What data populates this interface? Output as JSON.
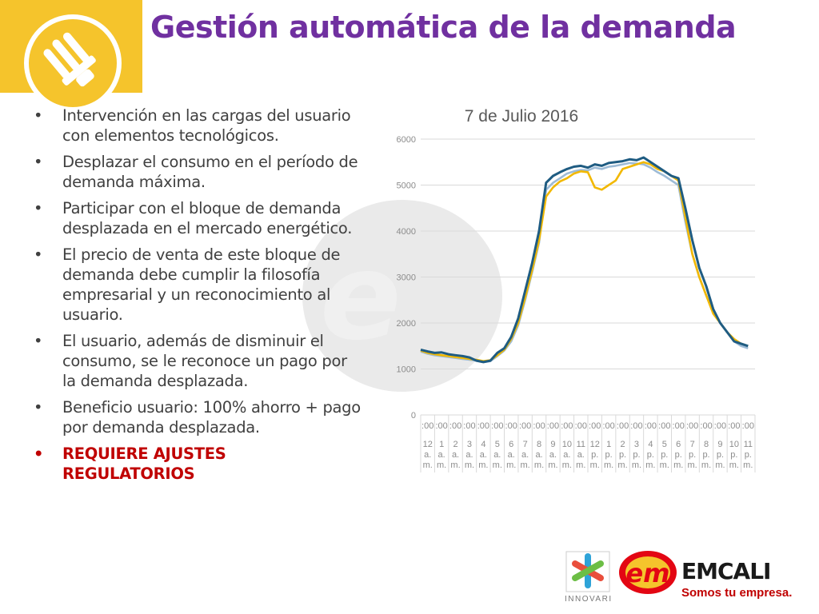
{
  "slide": {
    "title": "Gestión automática de la demanda",
    "bullets": [
      {
        "text": "Intervención en las cargas del usuario con elementos tecnológicos.",
        "alert": false
      },
      {
        "text": "Desplazar el consumo en el período de demanda máxima.",
        "alert": false
      },
      {
        "text": "Participar con el bloque de demanda desplazada en el mercado energético.",
        "alert": false
      },
      {
        "text": "El precio de venta de este bloque de demanda debe cumplir la filosofía empresarial y un reconocimiento al usuario.",
        "alert": false
      },
      {
        "text": "El usuario, además de disminuir el consumo, se le reconoce un pago por la demanda desplazada.",
        "alert": false
      },
      {
        "text": "Beneficio usuario: 100% ahorro + pago por demanda desplazada.",
        "alert": false
      },
      {
        "text": "REQUIERE AJUSTES REGULATORIOS",
        "alert": true
      }
    ],
    "bullet_char": "•",
    "logos": {
      "innovari": "INNOVARI",
      "emcali": "EMCALI",
      "emcali_tagline": "Somos tu empresa."
    },
    "colors": {
      "title": "#7030a0",
      "accent": "#f5c42c",
      "alert": "#c00000"
    }
  },
  "chart_data": {
    "type": "line",
    "title": "7 de Julio 2016",
    "ylim": [
      0,
      6000
    ],
    "yticks": [
      0,
      1000,
      2000,
      3000,
      4000,
      5000,
      6000
    ],
    "x_tick_top": ":00",
    "x_tick_labels": [
      [
        "12",
        "a.",
        "m."
      ],
      [
        "1",
        "a.",
        "m."
      ],
      [
        "2",
        "a.",
        "m."
      ],
      [
        "3",
        "a.",
        "m."
      ],
      [
        "4",
        "a.",
        "m."
      ],
      [
        "5",
        "a.",
        "m."
      ],
      [
        "6",
        "a.",
        "m."
      ],
      [
        "7",
        "a.",
        "m."
      ],
      [
        "8",
        "a.",
        "m."
      ],
      [
        "9",
        "a.",
        "m."
      ],
      [
        "10",
        "a.",
        "m."
      ],
      [
        "11",
        "a.",
        "m."
      ],
      [
        "12",
        "p.",
        "m."
      ],
      [
        "1",
        "p.",
        "m."
      ],
      [
        "2",
        "p.",
        "m."
      ],
      [
        "3",
        "p.",
        "m."
      ],
      [
        "4",
        "p.",
        "m."
      ],
      [
        "5",
        "p.",
        "m."
      ],
      [
        "6",
        "p.",
        "m."
      ],
      [
        "7",
        "p.",
        "m."
      ],
      [
        "8",
        "p.",
        "m."
      ],
      [
        "9",
        "p.",
        "m."
      ],
      [
        "10",
        "p.",
        "m."
      ],
      [
        "11",
        "p.",
        "m."
      ]
    ],
    "x": [
      0,
      0.5,
      1,
      1.5,
      2,
      2.5,
      3,
      3.5,
      4,
      4.5,
      5,
      5.5,
      6,
      6.5,
      7,
      7.5,
      8,
      8.5,
      9,
      9.5,
      10,
      10.5,
      11,
      11.5,
      12,
      12.5,
      13,
      13.5,
      14,
      14.5,
      15,
      15.5,
      16,
      16.5,
      17,
      17.5,
      18,
      18.5,
      19,
      19.5,
      20,
      20.5,
      21,
      21.5,
      22,
      22.5,
      23,
      23.5
    ],
    "series": [
      {
        "color": "#1f5c82",
        "values": [
          1420,
          1380,
          1350,
          1360,
          1320,
          1300,
          1280,
          1250,
          1180,
          1150,
          1180,
          1350,
          1450,
          1700,
          2100,
          2700,
          3300,
          4000,
          5050,
          5200,
          5280,
          5350,
          5400,
          5420,
          5380,
          5450,
          5420,
          5480,
          5500,
          5520,
          5560,
          5540,
          5600,
          5500,
          5400,
          5300,
          5200,
          5150,
          4500,
          3800,
          3200,
          2800,
          2300,
          2000,
          1800,
          1600,
          1550,
          1500
        ]
      },
      {
        "color": "#f2b800",
        "values": [
          1400,
          1350,
          1320,
          1300,
          1280,
          1260,
          1240,
          1220,
          1200,
          1170,
          1190,
          1300,
          1420,
          1650,
          2000,
          2550,
          3150,
          3800,
          4750,
          4950,
          5080,
          5150,
          5250,
          5300,
          5280,
          4950,
          4900,
          5000,
          5100,
          5350,
          5400,
          5450,
          5500,
          5450,
          5350,
          5300,
          5200,
          5100,
          4300,
          3500,
          3000,
          2600,
          2200,
          2000,
          1800,
          1650,
          1550,
          1500
        ]
      },
      {
        "color": "#9dbbd6",
        "values": [
          1380,
          1330,
          1300,
          1280,
          1260,
          1240,
          1220,
          1200,
          1180,
          1150,
          1170,
          1280,
          1400,
          1600,
          1950,
          2500,
          3100,
          3750,
          4900,
          5050,
          5150,
          5250,
          5300,
          5330,
          5320,
          5380,
          5350,
          5400,
          5420,
          5450,
          5480,
          5470,
          5450,
          5380,
          5280,
          5200,
          5100,
          5000,
          4200,
          3500,
          3000,
          2600,
          2250,
          2000,
          1800,
          1600,
          1500,
          1450
        ]
      }
    ]
  }
}
